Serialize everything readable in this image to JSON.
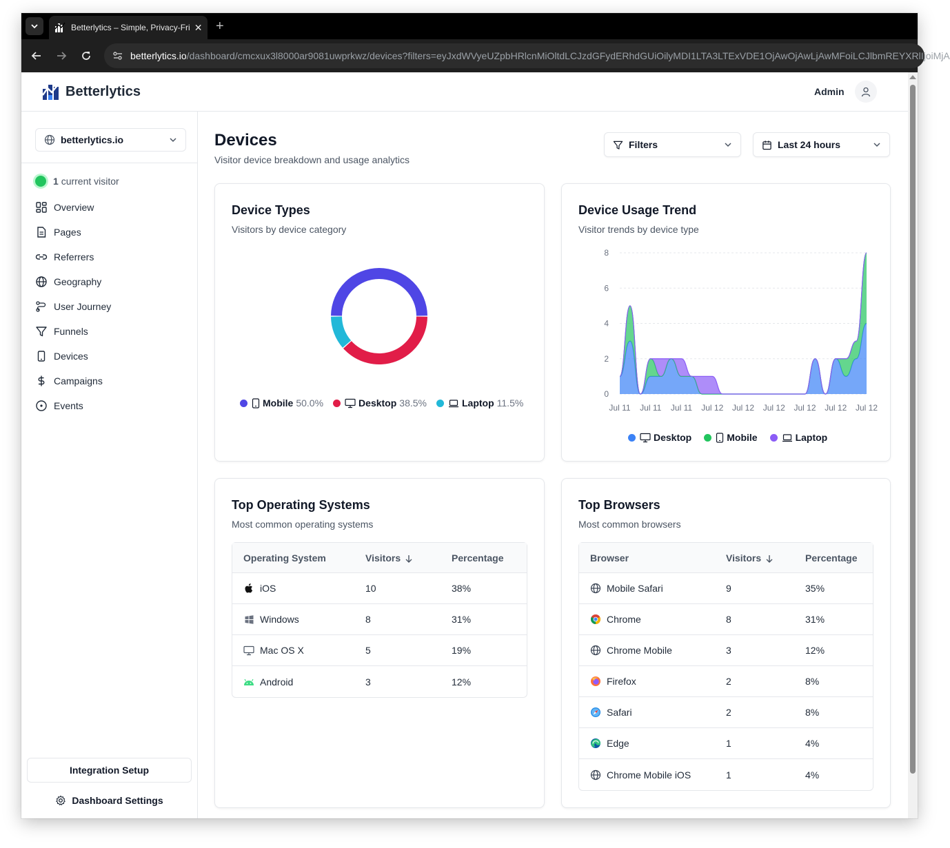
{
  "browser": {
    "tab_title": "Betterlytics – Simple, Privacy-Fri",
    "url_host": "betterlytics.io",
    "url_path": "/dashboard/cmcxux3l8000ar9081uwprkwz/devices?filters=eyJxdWVyeUZpbHRlcnMiOltdLCJzdGFydERhdGUiOilyMDI1LTA3LTExVDE1OjAwOjAwLjAwMFoiLCJlbmREYXRlIjoiMjA"
  },
  "header": {
    "brand": "Betterlytics",
    "user": "Admin"
  },
  "sidebar": {
    "site": "betterlytics.io",
    "live_count": "1",
    "live_label": "current visitor",
    "items": [
      {
        "label": "Overview",
        "icon": "overview-icon"
      },
      {
        "label": "Pages",
        "icon": "pages-icon"
      },
      {
        "label": "Referrers",
        "icon": "referrers-icon"
      },
      {
        "label": "Geography",
        "icon": "globe-icon"
      },
      {
        "label": "User Journey",
        "icon": "journey-icon"
      },
      {
        "label": "Funnels",
        "icon": "funnel-icon"
      },
      {
        "label": "Devices",
        "icon": "devices-icon"
      },
      {
        "label": "Campaigns",
        "icon": "dollar-icon"
      },
      {
        "label": "Events",
        "icon": "events-icon"
      }
    ],
    "integration_setup": "Integration Setup",
    "dashboard_settings": "Dashboard Settings"
  },
  "page": {
    "title": "Devices",
    "subtitle": "Visitor device breakdown and usage analytics",
    "filters_label": "Filters",
    "range_label": "Last 24 hours"
  },
  "device_types": {
    "title": "Device Types",
    "subtitle": "Visitors by device category",
    "legend": [
      {
        "name": "Mobile",
        "pct": "50.0%",
        "color": "#4f46e5"
      },
      {
        "name": "Desktop",
        "pct": "38.5%",
        "color": "#e11d48"
      },
      {
        "name": "Laptop",
        "pct": "11.5%",
        "color": "#22b8d8"
      }
    ]
  },
  "usage_trend": {
    "title": "Device Usage Trend",
    "subtitle": "Visitor trends by device type",
    "legend": [
      {
        "name": "Desktop",
        "color": "#3b82f6"
      },
      {
        "name": "Mobile",
        "color": "#22c55e"
      },
      {
        "name": "Laptop",
        "color": "#8b5cf6"
      }
    ]
  },
  "top_os": {
    "title": "Top Operating Systems",
    "subtitle": "Most common operating systems",
    "headers": [
      "Operating System",
      "Visitors",
      "Percentage"
    ],
    "rows": [
      {
        "name": "iOS",
        "visitors": "10",
        "pct": "38%",
        "icon": "apple-icon"
      },
      {
        "name": "Windows",
        "visitors": "8",
        "pct": "31%",
        "icon": "windows-icon"
      },
      {
        "name": "Mac OS X",
        "visitors": "5",
        "pct": "19%",
        "icon": "monitor-icon"
      },
      {
        "name": "Android",
        "visitors": "3",
        "pct": "12%",
        "icon": "android-icon"
      }
    ]
  },
  "top_browsers": {
    "title": "Top Browsers",
    "subtitle": "Most common browsers",
    "headers": [
      "Browser",
      "Visitors",
      "Percentage"
    ],
    "rows": [
      {
        "name": "Mobile Safari",
        "visitors": "9",
        "pct": "35%",
        "icon": "globe-icon"
      },
      {
        "name": "Chrome",
        "visitors": "8",
        "pct": "31%",
        "icon": "chrome-icon"
      },
      {
        "name": "Chrome Mobile",
        "visitors": "3",
        "pct": "12%",
        "icon": "globe-icon"
      },
      {
        "name": "Firefox",
        "visitors": "2",
        "pct": "8%",
        "icon": "firefox-icon"
      },
      {
        "name": "Safari",
        "visitors": "2",
        "pct": "8%",
        "icon": "safari-icon"
      },
      {
        "name": "Edge",
        "visitors": "1",
        "pct": "4%",
        "icon": "edge-icon"
      },
      {
        "name": "Chrome Mobile iOS",
        "visitors": "1",
        "pct": "4%",
        "icon": "globe-icon"
      }
    ]
  },
  "chart_data": [
    {
      "type": "pie",
      "title": "Device Types",
      "categories": [
        "Mobile",
        "Desktop",
        "Laptop"
      ],
      "values": [
        50.0,
        38.5,
        11.5
      ],
      "colors": [
        "#4f46e5",
        "#e11d48",
        "#22b8d8"
      ],
      "donut": true
    },
    {
      "type": "area",
      "title": "Device Usage Trend",
      "x": [
        "Jul 11",
        "Jul 11",
        "Jul 11",
        "Jul 11",
        "Jul 11",
        "Jul 11",
        "Jul 11",
        "Jul 11",
        "Jul 11",
        "Jul 11",
        "Jul 11",
        "Jul 11",
        "Jul 12",
        "Jul 12",
        "Jul 12",
        "Jul 12",
        "Jul 12",
        "Jul 12",
        "Jul 12",
        "Jul 12",
        "Jul 12",
        "Jul 12",
        "Jul 12",
        "Jul 12",
        "Jul 12"
      ],
      "x_tick_labels": [
        "Jul 11",
        "Jul 11",
        "Jul 11",
        "Jul 12",
        "Jul 12",
        "Jul 12",
        "Jul 12",
        "Jul 12",
        "Jul 12"
      ],
      "stacked": true,
      "ylim": [
        0,
        8
      ],
      "yticks": [
        0,
        2,
        4,
        6,
        8
      ],
      "grid": true,
      "legend_position": "bottom",
      "series": [
        {
          "name": "Desktop",
          "color": "#3b82f6",
          "values": [
            1,
            3,
            0,
            1,
            1,
            2,
            1,
            1,
            0,
            0,
            0,
            0,
            0,
            0,
            0,
            0,
            0,
            0,
            0,
            2,
            0,
            2,
            1,
            2,
            4
          ]
        },
        {
          "name": "Mobile",
          "color": "#22c55e",
          "values": [
            0,
            2,
            0,
            1,
            0,
            0,
            0,
            0,
            0,
            0,
            0,
            0,
            0,
            0,
            0,
            0,
            0,
            0,
            0,
            0,
            0,
            0,
            1,
            1,
            4
          ]
        },
        {
          "name": "Laptop",
          "color": "#8b5cf6",
          "values": [
            0,
            0,
            0,
            0,
            1,
            0,
            1,
            0,
            1,
            1,
            0,
            0,
            0,
            0,
            0,
            0,
            0,
            0,
            0,
            0,
            0,
            0,
            0,
            0,
            0
          ]
        }
      ]
    }
  ]
}
